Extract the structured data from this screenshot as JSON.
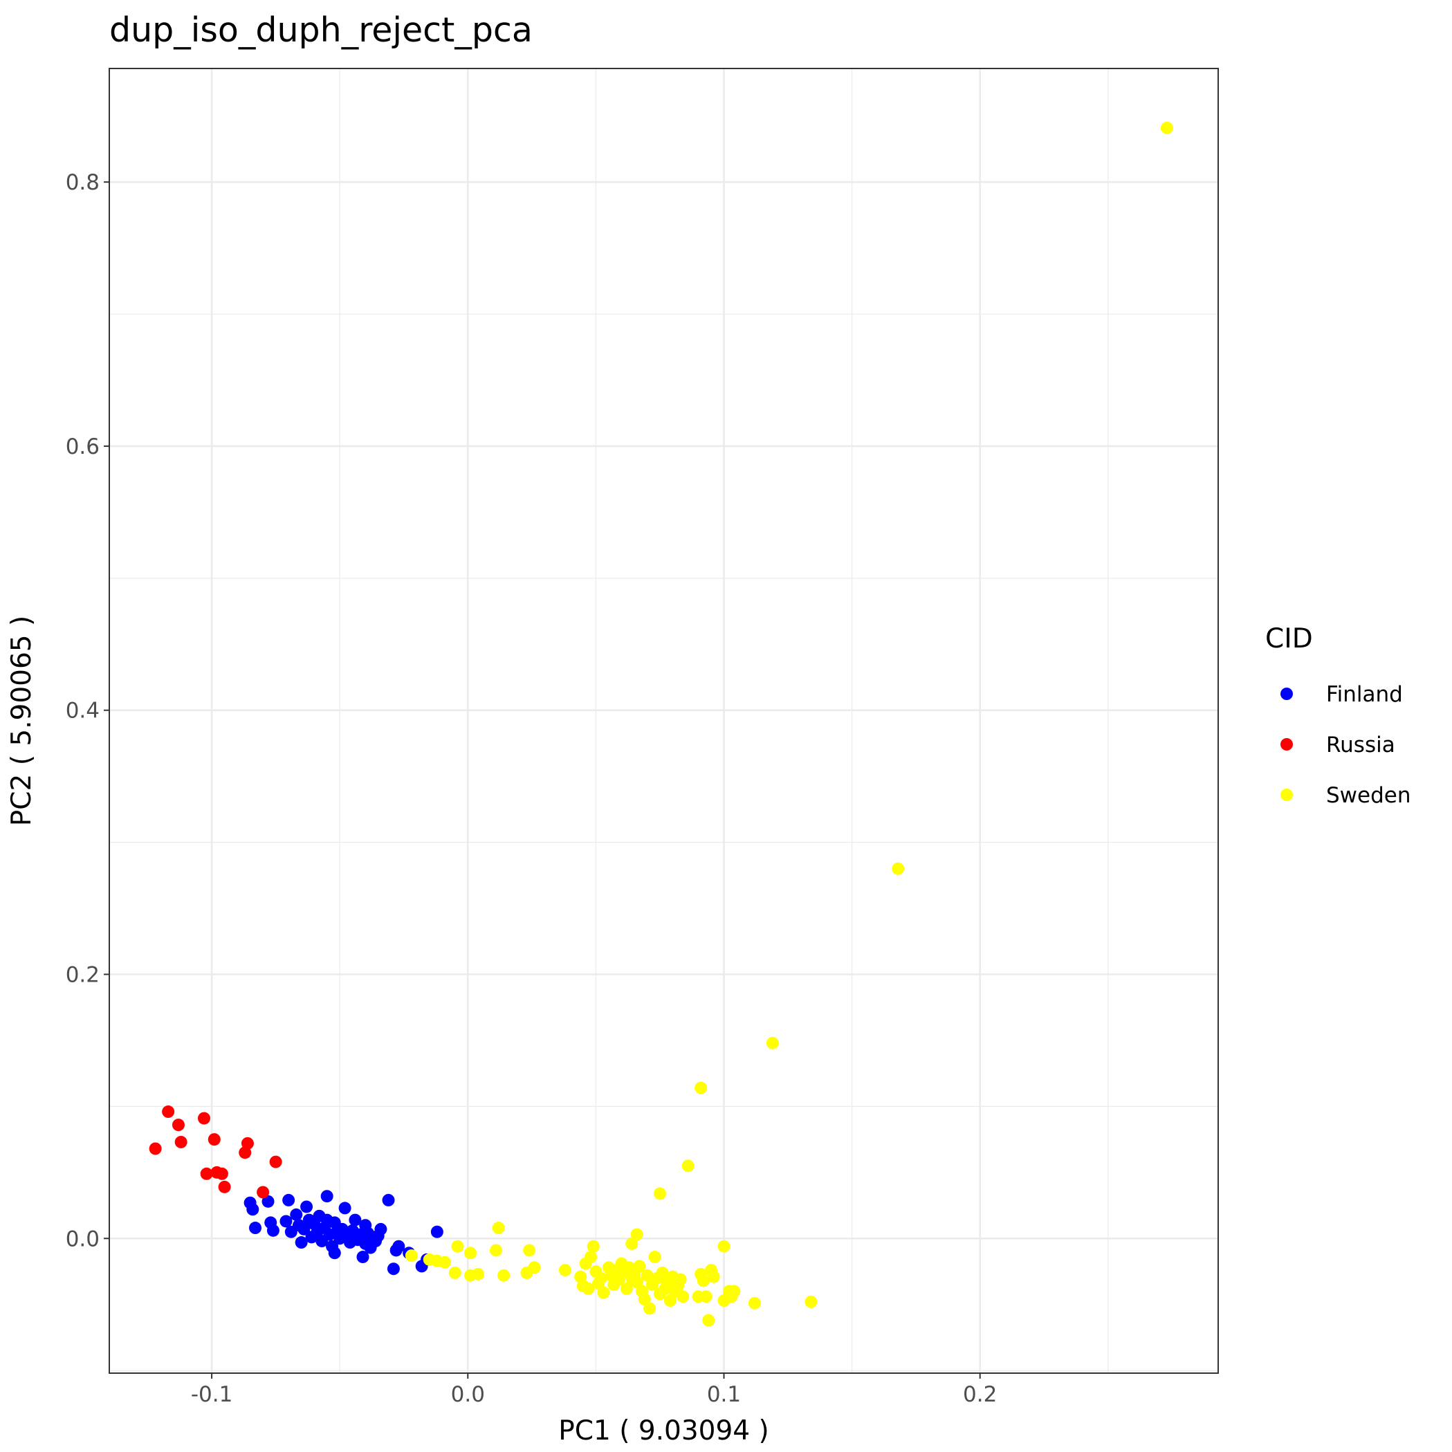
{
  "chart_data": {
    "type": "scatter",
    "title": "dup_iso_duph_reject_pca",
    "xlabel": "PC1 ( 9.03094 )",
    "ylabel": "PC2 ( 5.90065 )",
    "xlim": [
      -0.14,
      0.293
    ],
    "ylim": [
      -0.102,
      0.886
    ],
    "x_ticks": [
      -0.1,
      0.0,
      0.1,
      0.2
    ],
    "x_tick_labels": [
      "-0.1",
      "0.0",
      "0.1",
      "0.2"
    ],
    "y_ticks": [
      0.0,
      0.2,
      0.4,
      0.6,
      0.8
    ],
    "y_tick_labels": [
      "0.0",
      "0.2",
      "0.4",
      "0.6",
      "0.8"
    ],
    "grid": true,
    "legend": {
      "title": "CID",
      "placement": "right"
    },
    "series": [
      {
        "name": "Finland",
        "color": "#0000ff",
        "points": [
          [
            -0.085,
            0.027
          ],
          [
            -0.084,
            0.022
          ],
          [
            -0.078,
            0.028
          ],
          [
            -0.077,
            0.012
          ],
          [
            -0.076,
            0.006
          ],
          [
            -0.083,
            0.008
          ],
          [
            -0.07,
            0.029
          ],
          [
            -0.071,
            0.013
          ],
          [
            -0.069,
            0.005
          ],
          [
            -0.067,
            0.018
          ],
          [
            -0.066,
            0.01
          ],
          [
            -0.065,
            -0.003
          ],
          [
            -0.064,
            0.007
          ],
          [
            -0.063,
            0.024
          ],
          [
            -0.062,
            0.014
          ],
          [
            -0.061,
            0.001
          ],
          [
            -0.06,
            0.011
          ],
          [
            -0.059,
            0.004
          ],
          [
            -0.058,
            0.017
          ],
          [
            -0.057,
            -0.002
          ],
          [
            -0.056,
            0.008
          ],
          [
            -0.055,
            0.032
          ],
          [
            -0.055,
            0.014
          ],
          [
            -0.054,
            0.003
          ],
          [
            -0.053,
            -0.006
          ],
          [
            -0.052,
            -0.011
          ],
          [
            -0.052,
            0.012
          ],
          [
            -0.051,
            0.005
          ],
          [
            -0.05,
            0.0
          ],
          [
            -0.049,
            0.007
          ],
          [
            -0.048,
            0.023
          ],
          [
            -0.047,
            0.002
          ],
          [
            -0.046,
            -0.003
          ],
          [
            -0.045,
            0.006
          ],
          [
            -0.044,
            0.014
          ],
          [
            -0.043,
            -0.001
          ],
          [
            -0.042,
            0.003
          ],
          [
            -0.041,
            -0.014
          ],
          [
            -0.04,
            0.01
          ],
          [
            -0.04,
            -0.004
          ],
          [
            -0.039,
            0.004
          ],
          [
            -0.038,
            -0.007
          ],
          [
            -0.037,
            0.001
          ],
          [
            -0.036,
            -0.002
          ],
          [
            -0.035,
            0.002
          ],
          [
            -0.034,
            0.007
          ],
          [
            -0.031,
            0.029
          ],
          [
            -0.029,
            -0.023
          ],
          [
            -0.028,
            -0.009
          ],
          [
            -0.027,
            -0.006
          ],
          [
            -0.023,
            -0.011
          ],
          [
            -0.018,
            -0.021
          ],
          [
            -0.016,
            -0.016
          ],
          [
            -0.012,
            0.005
          ]
        ]
      },
      {
        "name": "Russia",
        "color": "#ff0000",
        "points": [
          [
            -0.122,
            0.068
          ],
          [
            -0.117,
            0.096
          ],
          [
            -0.113,
            0.086
          ],
          [
            -0.112,
            0.073
          ],
          [
            -0.103,
            0.091
          ],
          [
            -0.102,
            0.049
          ],
          [
            -0.099,
            0.075
          ],
          [
            -0.098,
            0.05
          ],
          [
            -0.096,
            0.049
          ],
          [
            -0.095,
            0.039
          ],
          [
            -0.087,
            0.065
          ],
          [
            -0.086,
            0.072
          ],
          [
            -0.08,
            0.035
          ],
          [
            -0.075,
            0.058
          ]
        ]
      },
      {
        "name": "Sweden",
        "color": "#ffff00",
        "points": [
          [
            0.273,
            0.841
          ],
          [
            0.168,
            0.28
          ],
          [
            0.119,
            0.148
          ],
          [
            0.091,
            0.114
          ],
          [
            0.086,
            0.055
          ],
          [
            0.075,
            0.034
          ],
          [
            0.012,
            0.008
          ],
          [
            0.066,
            0.003
          ],
          [
            -0.004,
            -0.006
          ],
          [
            0.001,
            -0.011
          ],
          [
            0.011,
            -0.009
          ],
          [
            0.024,
            -0.009
          ],
          [
            0.064,
            -0.004
          ],
          [
            0.049,
            -0.006
          ],
          [
            0.1,
            -0.006
          ],
          [
            -0.022,
            -0.013
          ],
          [
            -0.015,
            -0.016
          ],
          [
            -0.012,
            -0.017
          ],
          [
            -0.009,
            -0.018
          ],
          [
            -0.005,
            -0.026
          ],
          [
            0.001,
            -0.028
          ],
          [
            0.004,
            -0.027
          ],
          [
            0.014,
            -0.028
          ],
          [
            0.023,
            -0.026
          ],
          [
            0.026,
            -0.022
          ],
          [
            0.038,
            -0.024
          ],
          [
            0.044,
            -0.029
          ],
          [
            0.045,
            -0.036
          ],
          [
            0.046,
            -0.019
          ],
          [
            0.047,
            -0.038
          ],
          [
            0.048,
            -0.014
          ],
          [
            0.05,
            -0.025
          ],
          [
            0.051,
            -0.034
          ],
          [
            0.052,
            -0.03
          ],
          [
            0.053,
            -0.041
          ],
          [
            0.055,
            -0.022
          ],
          [
            0.056,
            -0.028
          ],
          [
            0.057,
            -0.035
          ],
          [
            0.058,
            -0.024
          ],
          [
            0.059,
            -0.031
          ],
          [
            0.06,
            -0.019
          ],
          [
            0.061,
            -0.026
          ],
          [
            0.062,
            -0.038
          ],
          [
            0.063,
            -0.022
          ],
          [
            0.064,
            -0.03
          ],
          [
            0.065,
            -0.027
          ],
          [
            0.066,
            -0.033
          ],
          [
            0.067,
            -0.021
          ],
          [
            0.068,
            -0.04
          ],
          [
            0.069,
            -0.046
          ],
          [
            0.07,
            -0.028
          ],
          [
            0.071,
            -0.053
          ],
          [
            0.072,
            -0.035
          ],
          [
            0.073,
            -0.014
          ],
          [
            0.074,
            -0.03
          ],
          [
            0.075,
            -0.042
          ],
          [
            0.076,
            -0.026
          ],
          [
            0.077,
            -0.038
          ],
          [
            0.078,
            -0.033
          ],
          [
            0.079,
            -0.047
          ],
          [
            0.08,
            -0.029
          ],
          [
            0.081,
            -0.04
          ],
          [
            0.082,
            -0.036
          ],
          [
            0.083,
            -0.031
          ],
          [
            0.084,
            -0.044
          ],
          [
            0.09,
            -0.044
          ],
          [
            0.091,
            -0.027
          ],
          [
            0.092,
            -0.032
          ],
          [
            0.093,
            -0.044
          ],
          [
            0.094,
            -0.062
          ],
          [
            0.095,
            -0.024
          ],
          [
            0.096,
            -0.029
          ],
          [
            0.1,
            -0.047
          ],
          [
            0.102,
            -0.04
          ],
          [
            0.103,
            -0.044
          ],
          [
            0.104,
            -0.04
          ],
          [
            0.112,
            -0.049
          ],
          [
            0.134,
            -0.048
          ]
        ]
      }
    ]
  }
}
